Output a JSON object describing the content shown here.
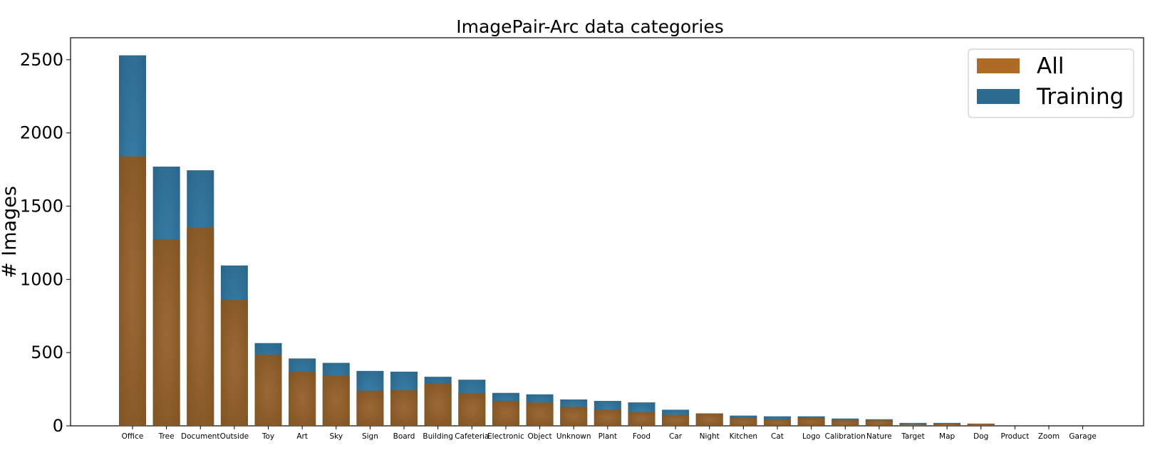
{
  "chart_data": {
    "type": "bar",
    "title": "ImagePair-Arc data categories",
    "xlabel": "",
    "ylabel": "# Images",
    "ylim": [
      0,
      2650
    ],
    "yticks": [
      0,
      500,
      1000,
      1500,
      2000,
      2500
    ],
    "grid": false,
    "legend_position": "top-right",
    "categories": [
      "Office",
      "Tree",
      "Document",
      "Outside",
      "Toy",
      "Art",
      "Sky",
      "Sign",
      "Board",
      "Building",
      "Cafeteria",
      "Electronic",
      "Object",
      "Unknown",
      "Plant",
      "Food",
      "Car",
      "Night",
      "Kitchen",
      "Cat",
      "Logo",
      "Calibration",
      "Nature",
      "Target",
      "Map",
      "Dog",
      "Product",
      "Zoom",
      "Garage"
    ],
    "series": [
      {
        "name": "All",
        "color": "#b06a28",
        "values": [
          1840,
          1275,
          1355,
          860,
          485,
          370,
          345,
          240,
          245,
          290,
          225,
          170,
          160,
          130,
          110,
          95,
          75,
          85,
          55,
          45,
          55,
          40,
          40,
          10,
          15,
          15,
          0,
          0,
          0
        ]
      },
      {
        "name": "Training",
        "color": "#2d6b8e",
        "values": [
          2530,
          1770,
          1745,
          1095,
          565,
          460,
          430,
          375,
          370,
          335,
          315,
          225,
          215,
          180,
          170,
          160,
          110,
          85,
          70,
          65,
          65,
          50,
          45,
          20,
          20,
          15,
          0,
          0,
          0
        ]
      }
    ]
  }
}
